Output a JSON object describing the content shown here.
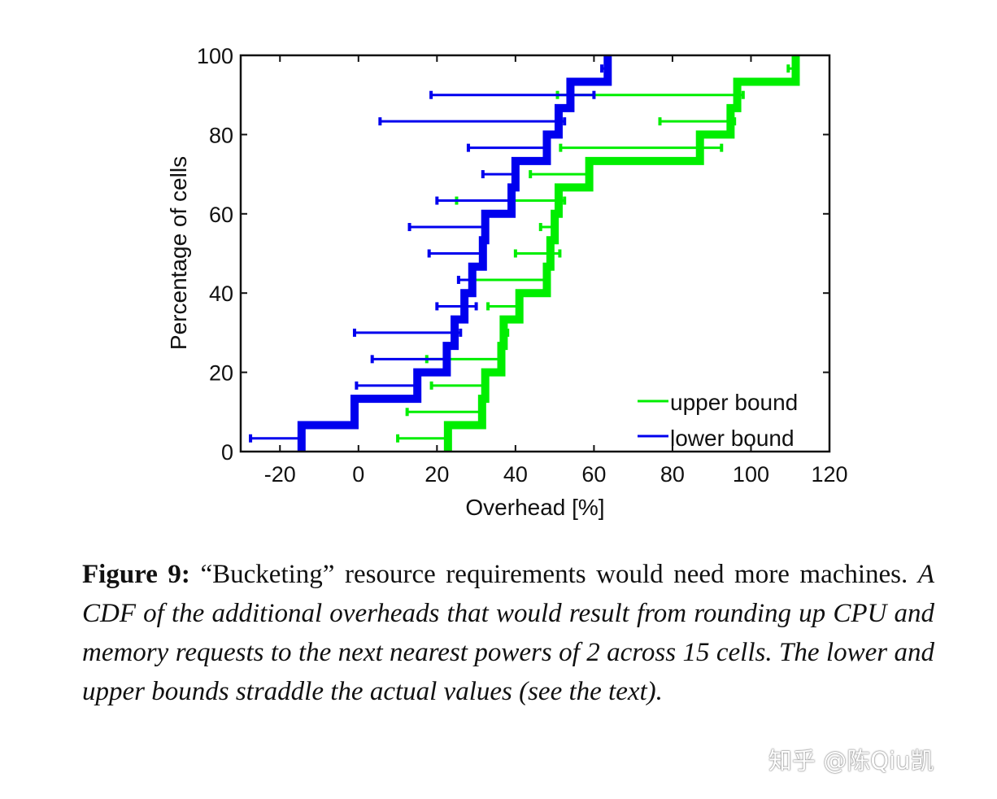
{
  "chart_data": {
    "type": "line",
    "subtype": "step-cdf-with-error-bars",
    "xlabel": "Overhead [%]",
    "ylabel": "Percentage of cells",
    "xlim": [
      -30,
      120
    ],
    "ylim": [
      0,
      100
    ],
    "xticks": [
      -20,
      0,
      20,
      40,
      60,
      80,
      100,
      120
    ],
    "yticks": [
      0,
      20,
      40,
      60,
      80,
      100
    ],
    "grid": false,
    "legend_position": "bottom-right",
    "cdf_levels": [
      6.67,
      13.33,
      20,
      26.67,
      33.33,
      40,
      46.67,
      53.33,
      60,
      66.67,
      73.33,
      80,
      86.67,
      93.33,
      100
    ],
    "series": [
      {
        "name": "upper bound",
        "color": "#00ee00",
        "values": [
          22.8,
          31.5,
          32.3,
          36.4,
          37,
          41,
          48,
          48.9,
          50,
          51,
          58.8,
          87,
          94.8,
          96.5,
          111.4
        ],
        "error_ranges": [
          [
            10,
            22.8
          ],
          [
            12.4,
            31.5
          ],
          [
            18.6,
            32.3
          ],
          [
            17.4,
            36.4
          ],
          [
            37,
            38
          ],
          [
            33,
            41
          ],
          [
            29,
            48
          ],
          [
            40,
            51.3
          ],
          [
            46.4,
            50
          ],
          [
            25,
            52.5
          ],
          [
            43.8,
            58.8
          ],
          [
            51.5,
            92.5
          ],
          [
            76.8,
            95.8
          ],
          [
            50.7,
            98
          ],
          [
            109.5,
            111.4
          ]
        ]
      },
      {
        "name": "lower bound",
        "color": "#0000ee",
        "values": [
          -14.5,
          -1,
          15,
          22.5,
          24.5,
          27,
          29,
          31.7,
          32.3,
          39,
          40,
          48,
          51,
          54,
          63.5
        ],
        "error_ranges": [
          [
            -27.5,
            -14.5
          ],
          [
            -1.5,
            -1
          ],
          [
            -0.5,
            15
          ],
          [
            3.5,
            22.5
          ],
          [
            -1,
            26
          ],
          [
            20,
            30
          ],
          [
            25.5,
            29
          ],
          [
            18,
            31.7
          ],
          [
            13,
            32.3
          ],
          [
            20,
            39
          ],
          [
            31.7,
            40
          ],
          [
            28,
            48
          ],
          [
            5.5,
            52.5
          ],
          [
            18.5,
            60
          ],
          [
            62,
            63.5
          ]
        ]
      }
    ]
  },
  "caption": {
    "label": "Figure 9:",
    "lead": " “Bucketing” resource requirements would need more machines. ",
    "body": "A CDF of the additional overheads that would result from rounding up CPU and memory requests to the next nearest powers of 2 across 15 cells. The lower and upper bounds straddle the actual values (see the text)."
  },
  "watermark": "知乎 @陈Qiu凯"
}
